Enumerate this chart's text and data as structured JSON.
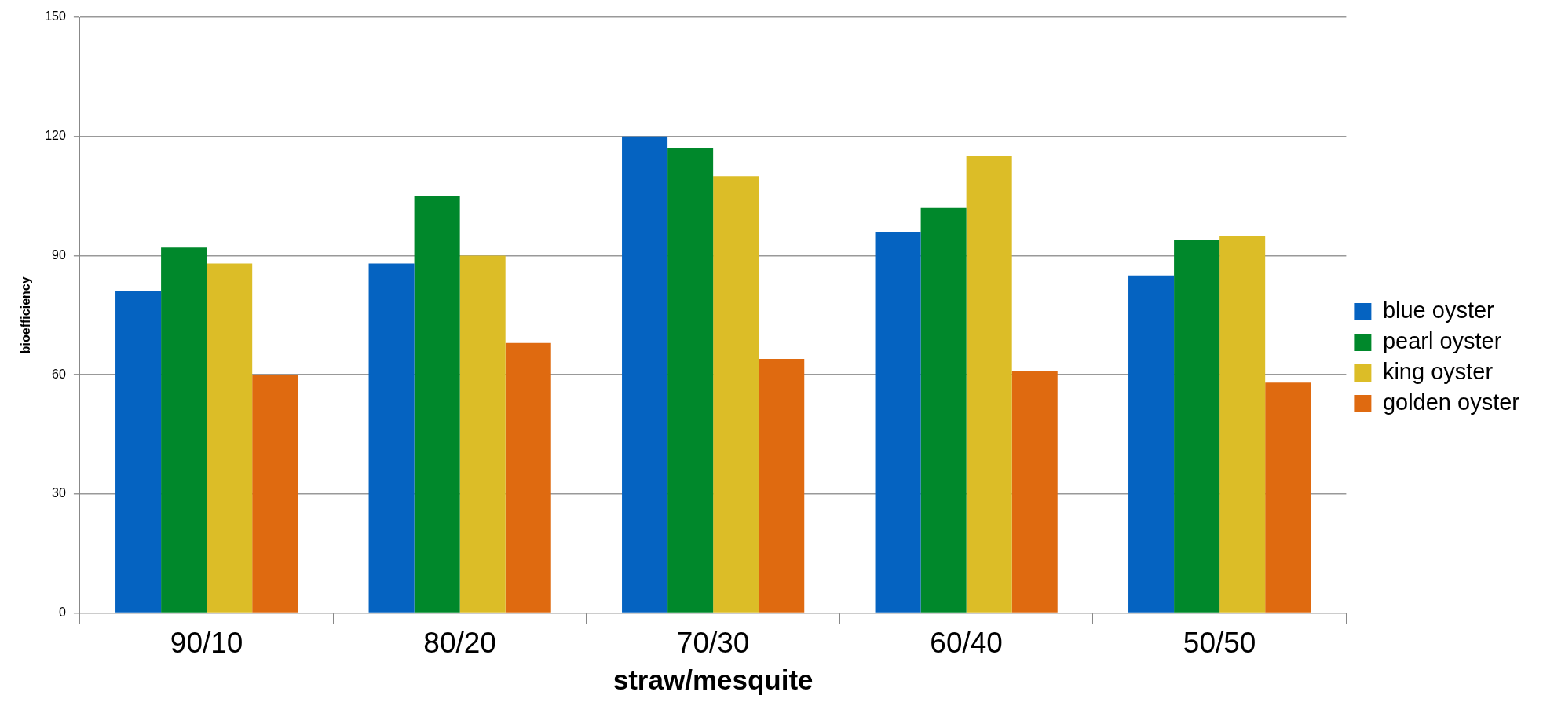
{
  "chart_data": {
    "type": "bar",
    "xlabel": "straw/mesquite",
    "ylabel": "bioefficiency",
    "categories": [
      "90/10",
      "80/20",
      "70/30",
      "60/40",
      "50/50"
    ],
    "series": [
      {
        "name": "blue oyster",
        "color": "#0563c1",
        "values": [
          81,
          88,
          120,
          96,
          85
        ]
      },
      {
        "name": "pearl oyster",
        "color": "#00882b",
        "values": [
          92,
          105,
          117,
          102,
          94
        ]
      },
      {
        "name": "king oyster",
        "color": "#dcbd27",
        "values": [
          88,
          90,
          110,
          115,
          95
        ]
      },
      {
        "name": "golden oyster",
        "color": "#df6a10",
        "values": [
          60,
          68,
          64,
          61,
          58
        ]
      }
    ],
    "ylim": [
      0,
      150
    ],
    "yticks": [
      0,
      30,
      60,
      90,
      120,
      150
    ],
    "grid": "y",
    "legend": "right"
  }
}
